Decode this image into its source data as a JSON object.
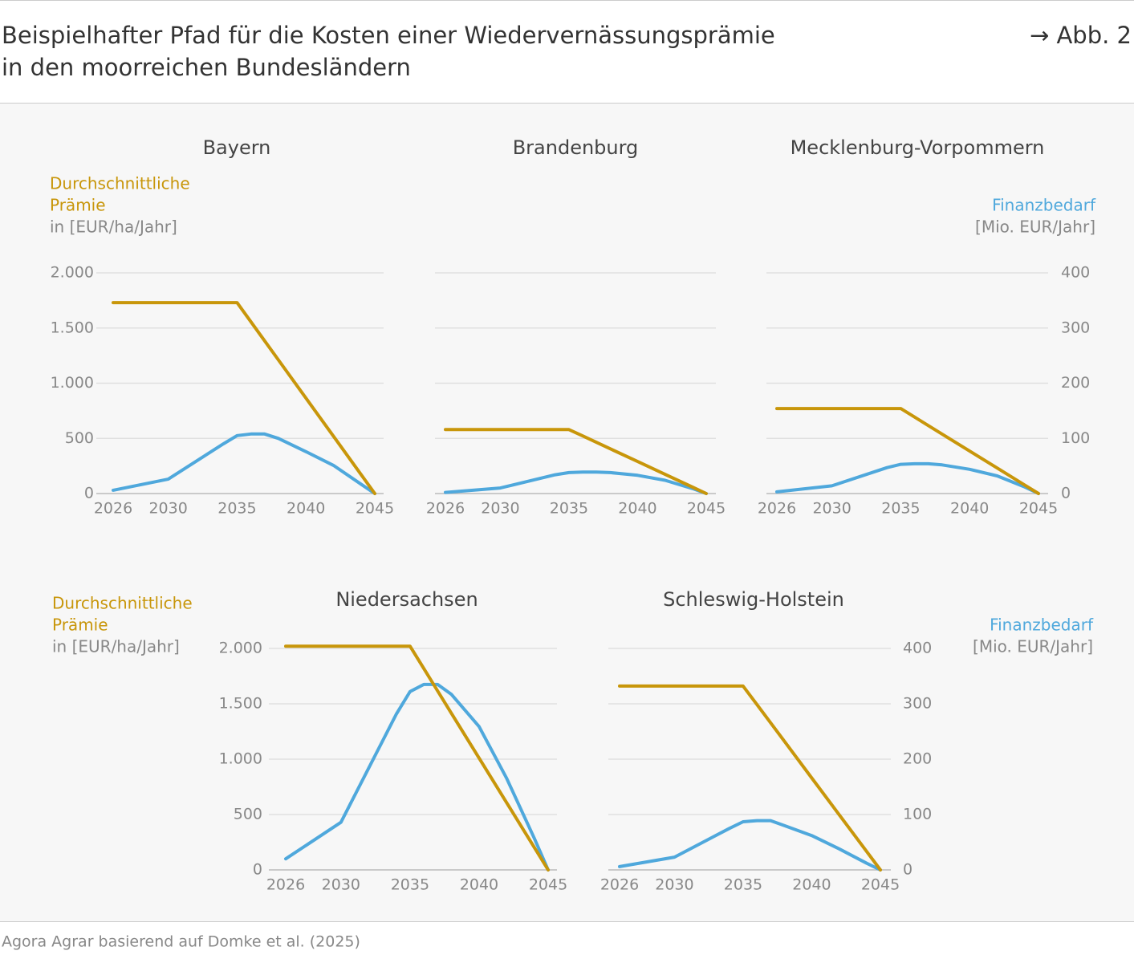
{
  "header": {
    "title_lines": [
      "Beispielhafter Pfad für die Kosten einer Wiedervernässungsprämie",
      "in den moorreichen Bundesländern"
    ],
    "figure_ref": "→ Abb. 2"
  },
  "source": "Agora Agrar basierend auf Domke et al. (2025)",
  "chart_data": [
    {
      "type": "line",
      "title": "Bayern",
      "ylabel": [
        "Durchschnittliche",
        "Prämie"
      ],
      "ylabel_unit": "in [EUR/ha/Jahr]",
      "x": [
        2026,
        2030,
        2034,
        2035,
        2036,
        2037,
        2038,
        2040,
        2042,
        2044,
        2045
      ],
      "xlim": [
        2026,
        2045
      ],
      "xticks": [
        2026,
        2030,
        2035,
        2040,
        2045
      ],
      "ylim": [
        0,
        2000
      ],
      "yticks": [
        0,
        500,
        {
          "value": 1000,
          "label": "1.000"
        },
        {
          "value": 1500,
          "label": "1.500"
        },
        {
          "value": 2000,
          "label": "2.000"
        }
      ],
      "ytick_labels": true,
      "y2lim": [
        0,
        400
      ],
      "grid": true,
      "series": [
        {
          "color": "#c8960a",
          "values": [
            1730,
            1730,
            1730,
            1730,
            1557,
            1384,
            1211,
            865,
            519,
            173,
            0
          ]
        },
        {
          "color": "#4fa8dc",
          "axis": "y2",
          "values": [
            6,
            26,
            90,
            105,
            108,
            108,
            100,
            76,
            51,
            17,
            0
          ]
        }
      ]
    },
    {
      "type": "line",
      "title": "Brandenburg",
      "x": [
        2026,
        2030,
        2034,
        2035,
        2036,
        2037,
        2038,
        2040,
        2042,
        2044,
        2045
      ],
      "xlim": [
        2026,
        2045
      ],
      "xticks": [
        2026,
        2030,
        2035,
        2040,
        2045
      ],
      "ylim": [
        0,
        2000
      ],
      "yticks": [
        0,
        500,
        {
          "value": 1000,
          "label": "1.000"
        },
        {
          "value": 1500,
          "label": "1.500"
        },
        {
          "value": 2000,
          "label": "2.000"
        }
      ],
      "ytick_labels": false,
      "y2lim": [
        0,
        400
      ],
      "grid": true,
      "series": [
        {
          "color": "#c8960a",
          "values": [
            580,
            580,
            580,
            580,
            522,
            464,
            406,
            290,
            174,
            58,
            0
          ]
        },
        {
          "color": "#4fa8dc",
          "axis": "y2",
          "values": [
            2,
            10,
            34,
            38,
            39,
            39,
            38,
            33,
            24,
            9,
            0
          ]
        }
      ]
    },
    {
      "type": "line",
      "title": "Mecklenburg-Vorpommern",
      "y2label": "Finanzbedarf",
      "y2label_unit": "[Mio. EUR/Jahr]",
      "x": [
        2026,
        2030,
        2034,
        2035,
        2036,
        2037,
        2038,
        2040,
        2042,
        2044,
        2045
      ],
      "xlim": [
        2026,
        2045
      ],
      "xticks": [
        2026,
        2030,
        2035,
        2040,
        2045
      ],
      "ylim": [
        0,
        2000
      ],
      "yticks": [
        0,
        500,
        {
          "value": 1000,
          "label": "1.000"
        },
        {
          "value": 1500,
          "label": "1.500"
        },
        {
          "value": 2000,
          "label": "2.000"
        }
      ],
      "ytick_labels": false,
      "y2lim": [
        0,
        400
      ],
      "y2ticks": [
        0,
        100,
        200,
        300,
        400
      ],
      "grid": true,
      "series": [
        {
          "color": "#c8960a",
          "values": [
            770,
            770,
            770,
            770,
            693,
            616,
            539,
            385,
            231,
            77,
            0
          ]
        },
        {
          "color": "#4fa8dc",
          "axis": "y2",
          "values": [
            3,
            14,
            47,
            53,
            54,
            54,
            52,
            44,
            32,
            12,
            0
          ]
        }
      ]
    },
    {
      "type": "line",
      "title": "Niedersachsen",
      "ylabel": [
        "Durchschnittliche",
        "Prämie"
      ],
      "ylabel_unit": "in [EUR/ha/Jahr]",
      "x": [
        2026,
        2030,
        2034,
        2035,
        2036,
        2037,
        2038,
        2040,
        2042,
        2044,
        2045
      ],
      "xlim": [
        2026,
        2045
      ],
      "xticks": [
        2026,
        2030,
        2035,
        2040,
        2045
      ],
      "ylim": [
        0,
        2000
      ],
      "yticks": [
        0,
        500,
        {
          "value": 1000,
          "label": "1.000"
        },
        {
          "value": 1500,
          "label": "1.500"
        },
        {
          "value": 2000,
          "label": "2.000"
        }
      ],
      "ytick_labels": true,
      "y2lim": [
        0,
        400
      ],
      "grid": true,
      "series": [
        {
          "color": "#c8960a",
          "values": [
            2020,
            2020,
            2020,
            2020,
            1818,
            1616,
            1414,
            1010,
            606,
            202,
            0
          ]
        },
        {
          "color": "#4fa8dc",
          "axis": "y2",
          "values": [
            20,
            86,
            281,
            322,
            335,
            335,
            317,
            259,
            165,
            57,
            0
          ]
        }
      ]
    },
    {
      "type": "line",
      "title": "Schleswig-Holstein",
      "y2label": "Finanzbedarf",
      "y2label_unit": "[Mio. EUR/Jahr]",
      "x": [
        2026,
        2030,
        2034,
        2035,
        2036,
        2037,
        2038,
        2040,
        2042,
        2044,
        2045
      ],
      "xlim": [
        2026,
        2045
      ],
      "xticks": [
        2026,
        2030,
        2035,
        2040,
        2045
      ],
      "ylim": [
        0,
        2000
      ],
      "yticks": [
        0,
        500,
        {
          "value": 1000,
          "label": "1.000"
        },
        {
          "value": 1500,
          "label": "1.500"
        },
        {
          "value": 2000,
          "label": "2.000"
        }
      ],
      "ytick_labels": false,
      "y2lim": [
        0,
        400
      ],
      "y2ticks": [
        0,
        100,
        200,
        300,
        400
      ],
      "grid": true,
      "series": [
        {
          "color": "#c8960a",
          "values": [
            1660,
            1660,
            1660,
            1660,
            1494,
            1328,
            1162,
            830,
            498,
            166,
            0
          ]
        },
        {
          "color": "#4fa8dc",
          "axis": "y2",
          "values": [
            6,
            23,
            75,
            87,
            89,
            89,
            80,
            62,
            38,
            12,
            0
          ]
        }
      ]
    }
  ]
}
